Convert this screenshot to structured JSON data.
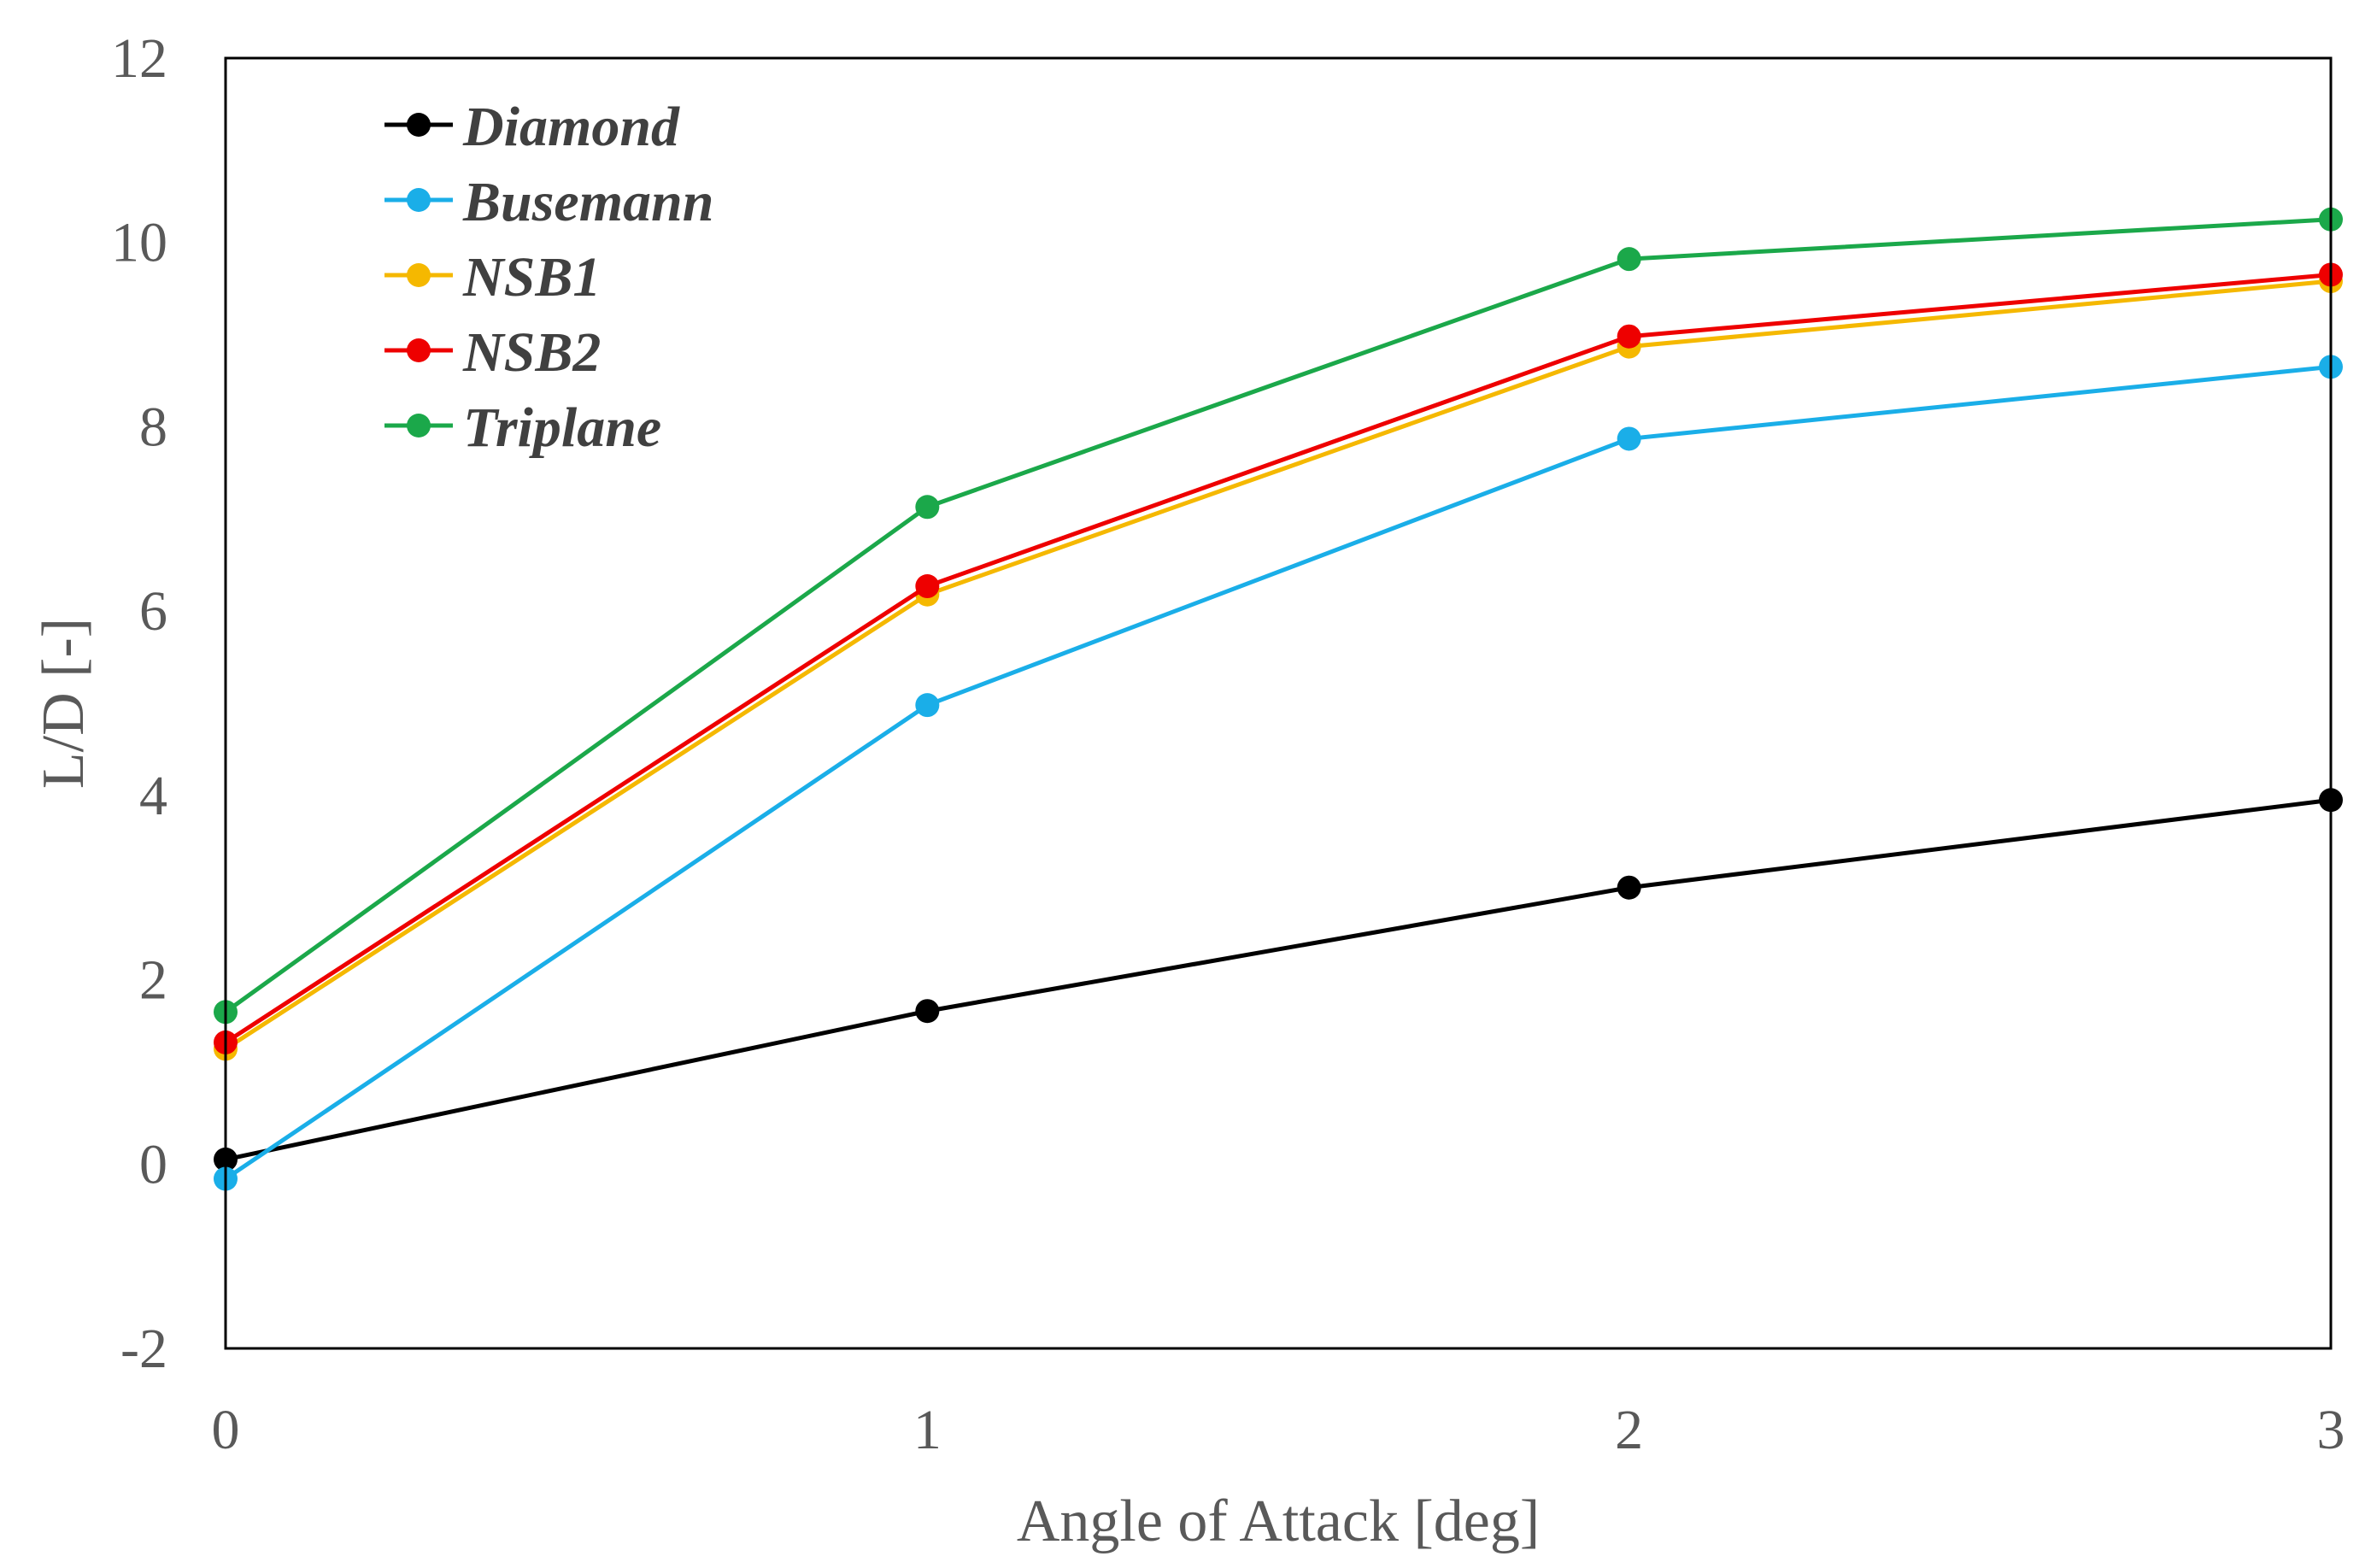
{
  "chart_data": {
    "type": "line",
    "title": "",
    "xlabel": "Angle of Attack [deg]",
    "ylabel": "L/D [-]",
    "xlim": [
      0,
      3
    ],
    "ylim": [
      -2,
      12
    ],
    "xticks": [
      0,
      1,
      2,
      3
    ],
    "xtick_labels": [
      "0",
      "1",
      "2",
      "3"
    ],
    "yticks": [
      -2,
      0,
      2,
      4,
      6,
      8,
      10,
      12
    ],
    "ytick_labels": [
      "-2",
      "0",
      "2",
      "4",
      "6",
      "8",
      "10",
      "12"
    ],
    "grid": false,
    "legend_position": "top-left",
    "x": [
      0,
      1,
      2,
      3
    ],
    "series": [
      {
        "name": "Diamond",
        "color": "#000000",
        "values": [
          0.05,
          1.66,
          3.0,
          3.95
        ]
      },
      {
        "name": "Busemann",
        "color": "#1AAEE8",
        "values": [
          -0.16,
          4.98,
          7.87,
          8.65
        ]
      },
      {
        "name": "NSB1",
        "color": "#F5B800",
        "values": [
          1.25,
          6.18,
          8.87,
          9.58
        ]
      },
      {
        "name": "NSB2",
        "color": "#EE0000",
        "values": [
          1.32,
          6.27,
          8.98,
          9.65
        ]
      },
      {
        "name": "Triplane",
        "color": "#1BA84A",
        "values": [
          1.65,
          7.13,
          9.82,
          10.25
        ]
      }
    ]
  }
}
